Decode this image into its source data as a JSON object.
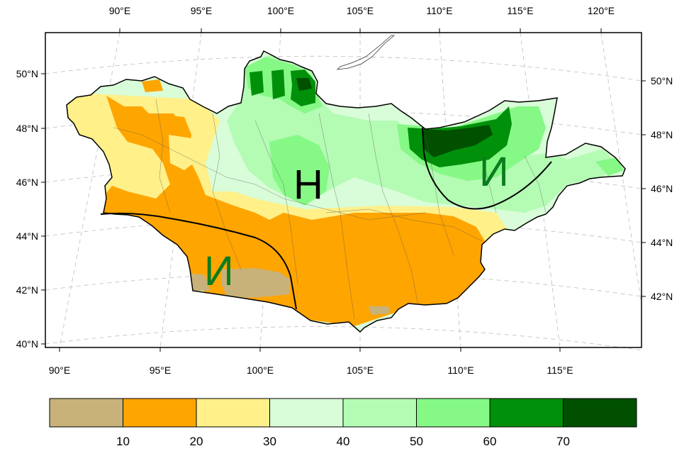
{
  "map": {
    "top_axis_ticks": [
      "90°E",
      "95°E",
      "100°E",
      "105°E",
      "110°E",
      "115°E",
      "120°E"
    ],
    "bottom_axis_ticks": [
      "90°E",
      "95°E",
      "100°E",
      "105°E",
      "110°E",
      "115°E"
    ],
    "left_axis_ticks": [
      "50°N",
      "48°N",
      "46°N",
      "44°N",
      "42°N",
      "40°N"
    ],
    "right_axis_ticks": [
      "50°N",
      "48°N",
      "46°N",
      "44°N",
      "42°N"
    ],
    "region_labels": {
      "north": "Н",
      "east": "И",
      "southwest": "И"
    }
  },
  "colorbar": {
    "tick_labels": [
      "10",
      "20",
      "30",
      "40",
      "50",
      "60",
      "70"
    ],
    "colors": [
      "#c8b27a",
      "#ffa500",
      "#fff08a",
      "#d8fdd8",
      "#b4fbb4",
      "#86f886",
      "#00900a",
      "#005000"
    ]
  },
  "colors": {
    "band_0_10": "#c8b27a",
    "band_10_20": "#ffa500",
    "band_20_30": "#fff08a",
    "band_30_40": "#d8fdd8",
    "band_40_50": "#b4fbb4",
    "band_50_60": "#86f886",
    "band_60_70": "#00900a",
    "band_70_plus": "#005000",
    "label_green": "#0b7d1e"
  }
}
